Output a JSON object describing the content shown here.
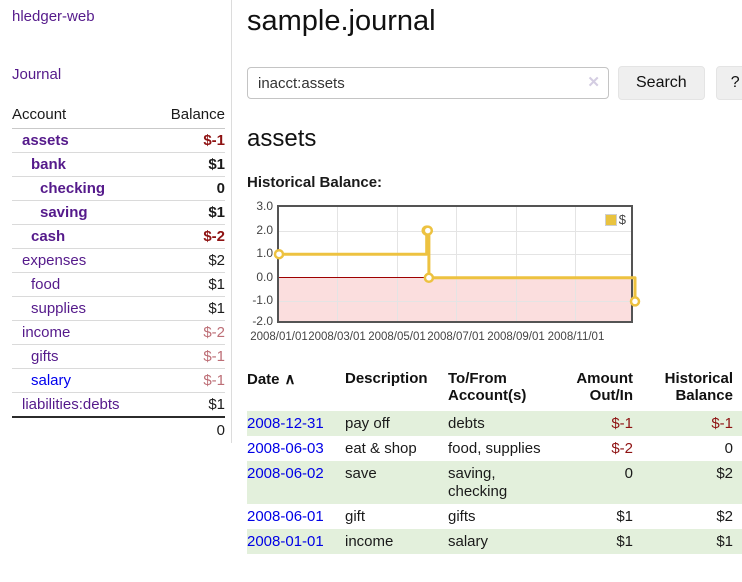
{
  "sidebar": {
    "brand": "hledger-web",
    "nav": {
      "journal": "Journal"
    },
    "accounts_table": {
      "headers": {
        "account": "Account",
        "balance": "Balance"
      },
      "rows": [
        {
          "name": "assets",
          "balance": "$-1"
        },
        {
          "name": "bank",
          "balance": "$1"
        },
        {
          "name": "checking",
          "balance": "0"
        },
        {
          "name": "saving",
          "balance": "$1"
        },
        {
          "name": "cash",
          "balance": "$-2"
        },
        {
          "name": "expenses",
          "balance": "$2"
        },
        {
          "name": "food",
          "balance": "$1"
        },
        {
          "name": "supplies",
          "balance": "$1"
        },
        {
          "name": "income",
          "balance": "$-2"
        },
        {
          "name": "gifts",
          "balance": "$-1"
        },
        {
          "name": "salary",
          "balance": "$-1"
        },
        {
          "name": "liabilities:debts",
          "balance": "$1"
        }
      ],
      "total": "0"
    }
  },
  "header": {
    "title": "sample.journal"
  },
  "search": {
    "query": "inacct:assets",
    "clear_icon": "✕",
    "search_button": "Search",
    "help_button": "?"
  },
  "main": {
    "account_heading": "assets",
    "chart_label": "Historical Balance:"
  },
  "chart_data": {
    "type": "line",
    "title": "Historical Balance",
    "step": true,
    "series": [
      {
        "name": "$",
        "color": "#edc240",
        "points": [
          {
            "date": "2008-01-01",
            "value": 1,
            "x_frac": 0.0
          },
          {
            "date": "2008-06-01",
            "value": 2,
            "x_frac": 0.415
          },
          {
            "date": "2008-06-02",
            "value": 2,
            "x_frac": 0.418
          },
          {
            "date": "2008-06-03",
            "value": 0,
            "x_frac": 0.421
          },
          {
            "date": "2008-12-31",
            "value": -1,
            "x_frac": 1.0
          }
        ]
      }
    ],
    "ylim": [
      -2,
      3
    ],
    "ytick_labels": [
      "3.0",
      "2.0",
      "1.0",
      "0.0",
      "-1.0",
      "-2.0"
    ],
    "xtick_labels": [
      "2008/01/01",
      "2008/03/01",
      "2008/05/01",
      "2008/07/01",
      "2008/09/01",
      "2008/11/01"
    ],
    "legend": {
      "label": "$",
      "position": "top-right"
    },
    "grid": true,
    "negative_region_color": "#fbdede",
    "zero_line_color": "#9e0000"
  },
  "transactions": {
    "headers": {
      "date": "Date",
      "sort_arrow": "∧",
      "description": "Description",
      "accounts": "To/From Account(s)",
      "amount": "Amount Out/In",
      "balance": "Historical Balance"
    },
    "rows": [
      {
        "date": "2008-12-31",
        "description": "pay off",
        "accounts": "debts",
        "amount": "$-1",
        "balance": "$-1"
      },
      {
        "date": "2008-06-03",
        "description": "eat & shop",
        "accounts": "food, supplies",
        "amount": "$-2",
        "balance": "0"
      },
      {
        "date": "2008-06-02",
        "description": "save",
        "accounts": "saving, checking",
        "amount": "0",
        "balance": "$2"
      },
      {
        "date": "2008-06-01",
        "description": "gift",
        "accounts": "gifts",
        "amount": "$1",
        "balance": "$2"
      },
      {
        "date": "2008-01-01",
        "description": "income",
        "accounts": "salary",
        "amount": "$1",
        "balance": "$1"
      }
    ]
  }
}
